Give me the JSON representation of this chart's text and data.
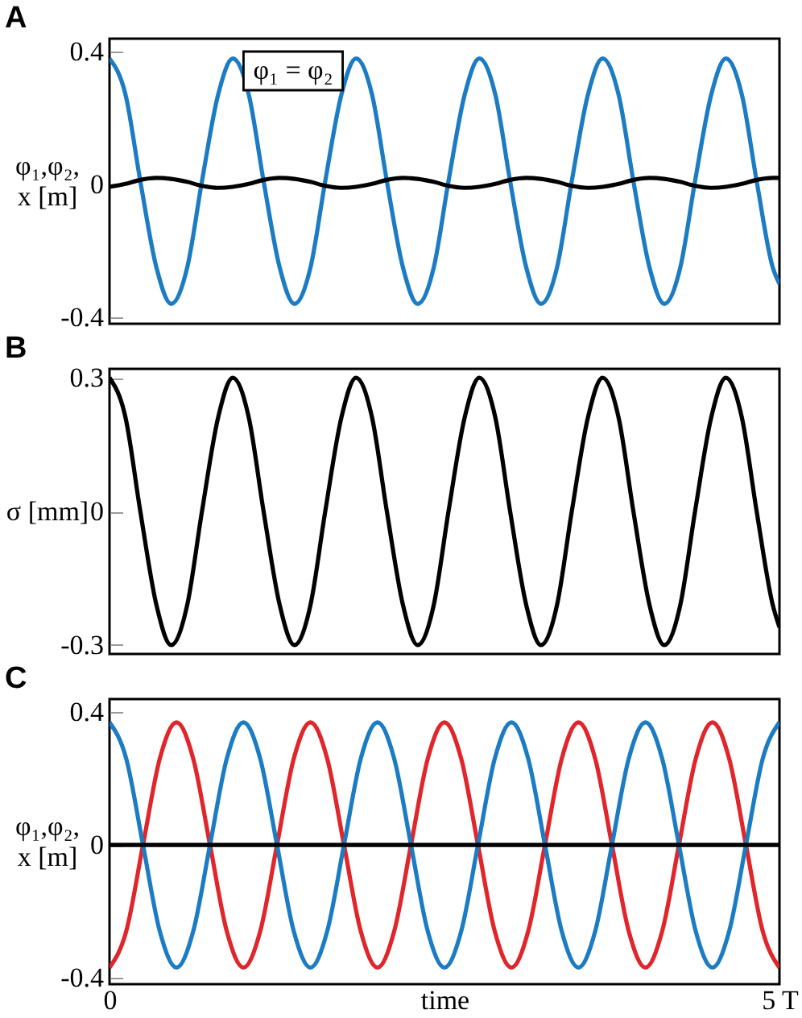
{
  "chart_data": [
    {
      "type": "line",
      "title": "A",
      "ylabel": "φ₁,φ₂,\nx [m]",
      "annotations": [
        "φ₁ = φ₂"
      ],
      "xlim": [
        0,
        5
      ],
      "ylim": [
        -0.42,
        0.44
      ],
      "yticks": [
        -0.4,
        0,
        0.4
      ],
      "tick_labels": "y",
      "x": [
        0,
        0.12,
        0.23,
        0.35,
        0.46,
        0.58,
        0.69,
        0.81,
        0.92,
        1.04,
        1.15,
        1.27,
        1.38,
        1.5,
        1.61,
        1.73,
        1.84,
        1.96,
        2.07,
        2.19,
        2.3,
        2.42,
        2.53,
        2.65,
        2.76,
        2.88,
        2.99,
        3.11,
        3.22,
        3.34,
        3.45,
        3.57,
        3.68,
        3.8,
        3.91,
        4.03,
        4.14,
        4.26,
        4.37,
        4.49,
        4.6,
        4.72,
        4.83,
        4.95,
        5
      ],
      "series": [
        {
          "color": "#1b7cc4",
          "values": [
            0.38,
            0.27,
            0.01,
            -0.25,
            -0.36,
            -0.25,
            0.01,
            0.27,
            0.38,
            0.27,
            0.01,
            -0.25,
            -0.36,
            -0.25,
            0.01,
            0.27,
            0.38,
            0.27,
            0.01,
            -0.25,
            -0.36,
            -0.25,
            0.01,
            0.27,
            0.38,
            0.27,
            0.01,
            -0.25,
            -0.36,
            -0.25,
            0.01,
            0.27,
            0.38,
            0.27,
            0.01,
            -0.25,
            -0.36,
            -0.25,
            0.01,
            0.27,
            0.38,
            0.27,
            0.01,
            -0.25,
            -0.3
          ]
        },
        {
          "color": "#000000",
          "values": [
            -0.007,
            0.002,
            0.014,
            0.02,
            0.017,
            0.008,
            -0.004,
            -0.01,
            -0.007,
            0.002,
            0.014,
            0.02,
            0.017,
            0.008,
            -0.004,
            -0.01,
            -0.007,
            0.002,
            0.014,
            0.02,
            0.017,
            0.008,
            -0.004,
            -0.01,
            -0.007,
            0.002,
            0.014,
            0.02,
            0.017,
            0.008,
            -0.004,
            -0.01,
            -0.007,
            0.002,
            0.014,
            0.02,
            0.017,
            0.008,
            -0.004,
            -0.01,
            -0.007,
            0.002,
            0.014,
            0.02,
            0.02
          ]
        }
      ]
    },
    {
      "type": "line",
      "title": "B",
      "ylabel": "σ [mm]",
      "xlim": [
        0,
        5
      ],
      "ylim": [
        -0.32,
        0.32
      ],
      "yticks": [
        -0.3,
        0,
        0.3
      ],
      "tick_labels": "y",
      "x": [
        0,
        0.12,
        0.23,
        0.35,
        0.46,
        0.58,
        0.69,
        0.81,
        0.92,
        1.04,
        1.15,
        1.27,
        1.38,
        1.5,
        1.61,
        1.73,
        1.84,
        1.96,
        2.07,
        2.19,
        2.3,
        2.42,
        2.53,
        2.65,
        2.76,
        2.88,
        2.99,
        3.11,
        3.22,
        3.34,
        3.45,
        3.57,
        3.68,
        3.8,
        3.91,
        4.03,
        4.14,
        4.26,
        4.37,
        4.49,
        4.6,
        4.72,
        4.83,
        4.95,
        5
      ],
      "series": [
        {
          "color": "#000000",
          "values": [
            0.3,
            0.21,
            0,
            -0.21,
            -0.3,
            -0.21,
            0,
            0.21,
            0.3,
            0.21,
            0,
            -0.21,
            -0.3,
            -0.21,
            0,
            0.21,
            0.3,
            0.21,
            0,
            -0.21,
            -0.3,
            -0.21,
            0,
            0.21,
            0.3,
            0.21,
            0,
            -0.21,
            -0.3,
            -0.21,
            0,
            0.21,
            0.3,
            0.21,
            0,
            -0.21,
            -0.3,
            -0.21,
            0,
            0.21,
            0.3,
            0.21,
            0,
            -0.21,
            -0.26
          ]
        }
      ]
    },
    {
      "type": "line",
      "title": "C",
      "xlabel": "time",
      "ylabel": "φ₁,φ₂,\nx [m]",
      "xlim": [
        0,
        5
      ],
      "ylim": [
        -0.42,
        0.44
      ],
      "xticks": [
        0,
        {
          "value": 5,
          "label": "5 T"
        }
      ],
      "yticks": [
        -0.4,
        0,
        0.4
      ],
      "x": [
        0,
        0.125,
        0.25,
        0.375,
        0.5,
        0.625,
        0.75,
        0.875,
        1,
        1.125,
        1.25,
        1.375,
        1.5,
        1.625,
        1.75,
        1.875,
        2,
        2.125,
        2.25,
        2.375,
        2.5,
        2.625,
        2.75,
        2.875,
        3,
        3.125,
        3.25,
        3.375,
        3.5,
        3.625,
        3.75,
        3.875,
        4,
        4.125,
        4.25,
        4.375,
        4.5,
        4.625,
        4.75,
        4.875,
        5
      ],
      "series": [
        {
          "color": "#e0252b",
          "values": [
            -0.37,
            -0.26,
            0,
            0.26,
            0.37,
            0.26,
            0,
            -0.26,
            -0.37,
            -0.26,
            0,
            0.26,
            0.37,
            0.26,
            0,
            -0.26,
            -0.37,
            -0.26,
            0,
            0.26,
            0.37,
            0.26,
            0,
            -0.26,
            -0.37,
            -0.26,
            0,
            0.26,
            0.37,
            0.26,
            0,
            -0.26,
            -0.37,
            -0.26,
            0,
            0.26,
            0.37,
            0.26,
            0,
            -0.26,
            -0.37
          ]
        },
        {
          "color": "#1b7cc4",
          "values": [
            0.37,
            0.26,
            0,
            -0.26,
            -0.37,
            -0.26,
            0,
            0.26,
            0.37,
            0.26,
            0,
            -0.26,
            -0.37,
            -0.26,
            0,
            0.26,
            0.37,
            0.26,
            0,
            -0.26,
            -0.37,
            -0.26,
            0,
            0.26,
            0.37,
            0.26,
            0,
            -0.26,
            -0.37,
            -0.26,
            0,
            0.26,
            0.37,
            0.26,
            0,
            -0.26,
            -0.37,
            -0.26,
            0,
            0.26,
            0.37
          ]
        },
        {
          "color": "#000000",
          "x": [
            0,
            5
          ],
          "values": [
            0,
            0
          ]
        }
      ]
    }
  ]
}
